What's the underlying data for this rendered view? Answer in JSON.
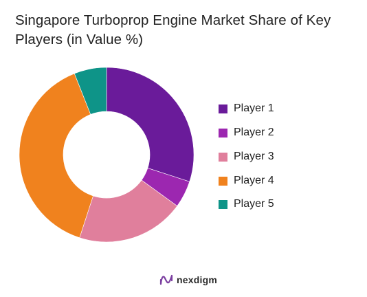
{
  "chart_data": {
    "type": "pie",
    "title": "Singapore Turboprop Engine Market Share of Key Players (in Value %)",
    "donut": true,
    "categories": [
      "Player 1",
      "Player 2",
      "Player 3",
      "Player 4",
      "Player 5"
    ],
    "values": [
      30,
      5,
      20,
      39,
      6
    ],
    "colors": [
      "#6a1b9a",
      "#9c27b0",
      "#e07f9c",
      "#f0821e",
      "#0e9488"
    ],
    "legend": "right"
  },
  "legend": {
    "items": [
      {
        "label": "Player 1",
        "color": "#6a1b9a"
      },
      {
        "label": "Player 2",
        "color": "#9c27b0"
      },
      {
        "label": "Player 3",
        "color": "#e07f9c"
      },
      {
        "label": "Player 4",
        "color": "#f0821e"
      },
      {
        "label": "Player 5",
        "color": "#0e9488"
      }
    ]
  },
  "brand": {
    "name": "nexdigm",
    "icon": "nexdigm-logo-icon",
    "color": "#7b3fa0"
  }
}
